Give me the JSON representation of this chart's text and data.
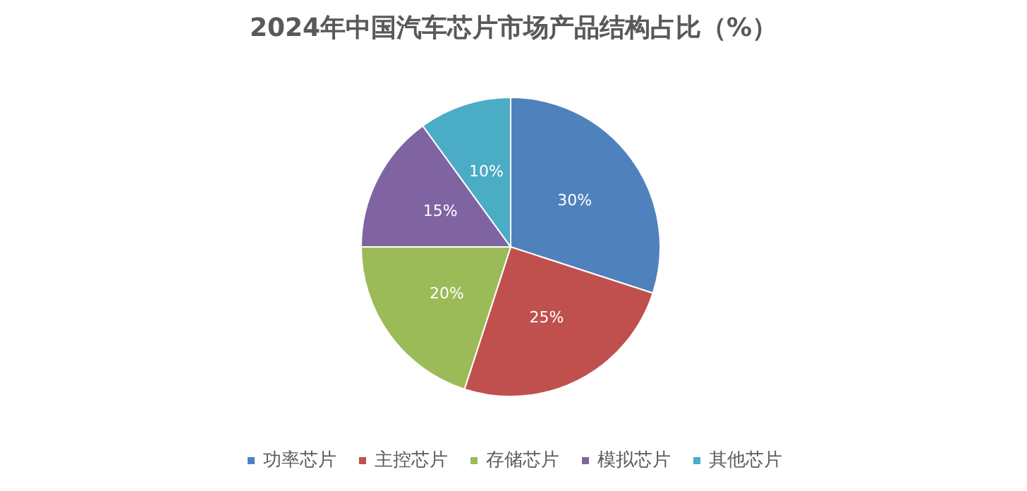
{
  "chart_data": {
    "type": "pie",
    "title": "2024年中国汽车芯片市场产品结构占比（%）",
    "categories": [
      "功率芯片",
      "主控芯片",
      "存储芯片",
      "模拟芯片",
      "其他芯片"
    ],
    "values": [
      30,
      25,
      20,
      15,
      10
    ],
    "colors": [
      "#4f81bd",
      "#c0504d",
      "#9bbb59",
      "#8064a2",
      "#4bacc6"
    ],
    "value_labels": [
      "30%",
      "25%",
      "20%",
      "15%",
      "10%"
    ],
    "legend": "bottom"
  }
}
